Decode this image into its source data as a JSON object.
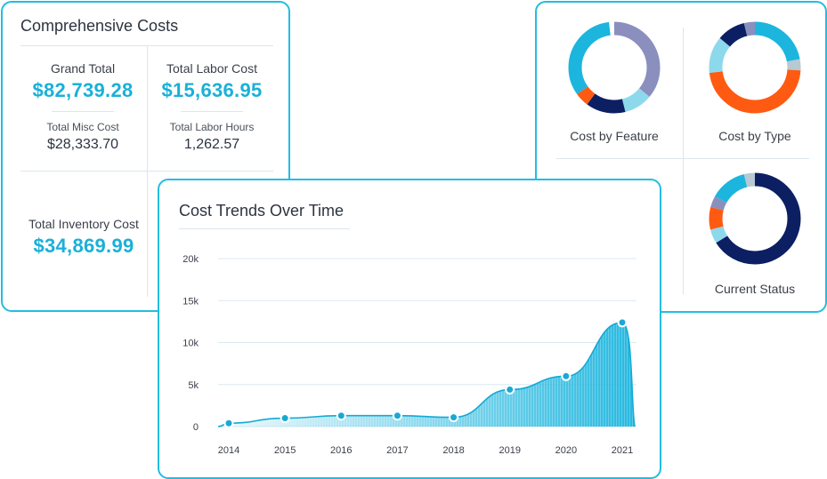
{
  "costs": {
    "title": "Comprehensive Costs",
    "grand_total": {
      "label": "Grand Total",
      "value": "$82,739.28"
    },
    "total_labor_cost": {
      "label": "Total Labor Cost",
      "value": "$15,636.95"
    },
    "total_misc_cost": {
      "label": "Total Misc Cost",
      "value": "$28,333.70"
    },
    "total_labor_hours": {
      "label": "Total Labor Hours",
      "value": "1,262.57"
    },
    "total_inventory_cost": {
      "label": "Total Inventory Cost",
      "value": "$34,869.99"
    }
  },
  "donuts": [
    {
      "label": "Cost by Feature",
      "segments": [
        {
          "color": "#8a8fbe",
          "share": 0.36
        },
        {
          "color": "#8dd9ec",
          "share": 0.1
        },
        {
          "color": "#0d1f63",
          "share": 0.14
        },
        {
          "color": "#ff5a12",
          "share": 0.05
        },
        {
          "color": "#1cb5de",
          "share": 0.33
        },
        {
          "color": "#ffffff",
          "share": 0.02
        }
      ]
    },
    {
      "label": "Cost by Type",
      "segments": [
        {
          "color": "#1cb5de",
          "share": 0.22
        },
        {
          "color": "#b7c9d3",
          "share": 0.04
        },
        {
          "color": "#ff5a12",
          "share": 0.47
        },
        {
          "color": "#8dd9ec",
          "share": 0.13
        },
        {
          "color": "#0d1f63",
          "share": 0.1
        },
        {
          "color": "#8a8fbe",
          "share": 0.04
        }
      ]
    },
    {
      "label": "Current Status",
      "segments": [
        {
          "color": "#0d1f63",
          "share": 0.66
        },
        {
          "color": "#8dd9ec",
          "share": 0.05
        },
        {
          "color": "#ff5a12",
          "share": 0.08
        },
        {
          "color": "#8a8fbe",
          "share": 0.04
        },
        {
          "color": "#1cb5de",
          "share": 0.13
        },
        {
          "color": "#b7c9d3",
          "share": 0.04
        }
      ]
    }
  ],
  "trend": {
    "title": "Cost Trends Over Time",
    "chart_data": {
      "type": "area",
      "title": "Cost Trends Over Time",
      "categories": [
        "2014",
        "2015",
        "2016",
        "2017",
        "2018",
        "2019",
        "2020",
        "2021"
      ],
      "values": [
        400,
        1000,
        1300,
        1300,
        1100,
        4400,
        6000,
        12400
      ],
      "y_ticks": [
        "0",
        "5k",
        "10k",
        "15k",
        "20k"
      ],
      "ylim": [
        0,
        20000
      ],
      "grid": true,
      "color": "#1cb5de"
    }
  }
}
